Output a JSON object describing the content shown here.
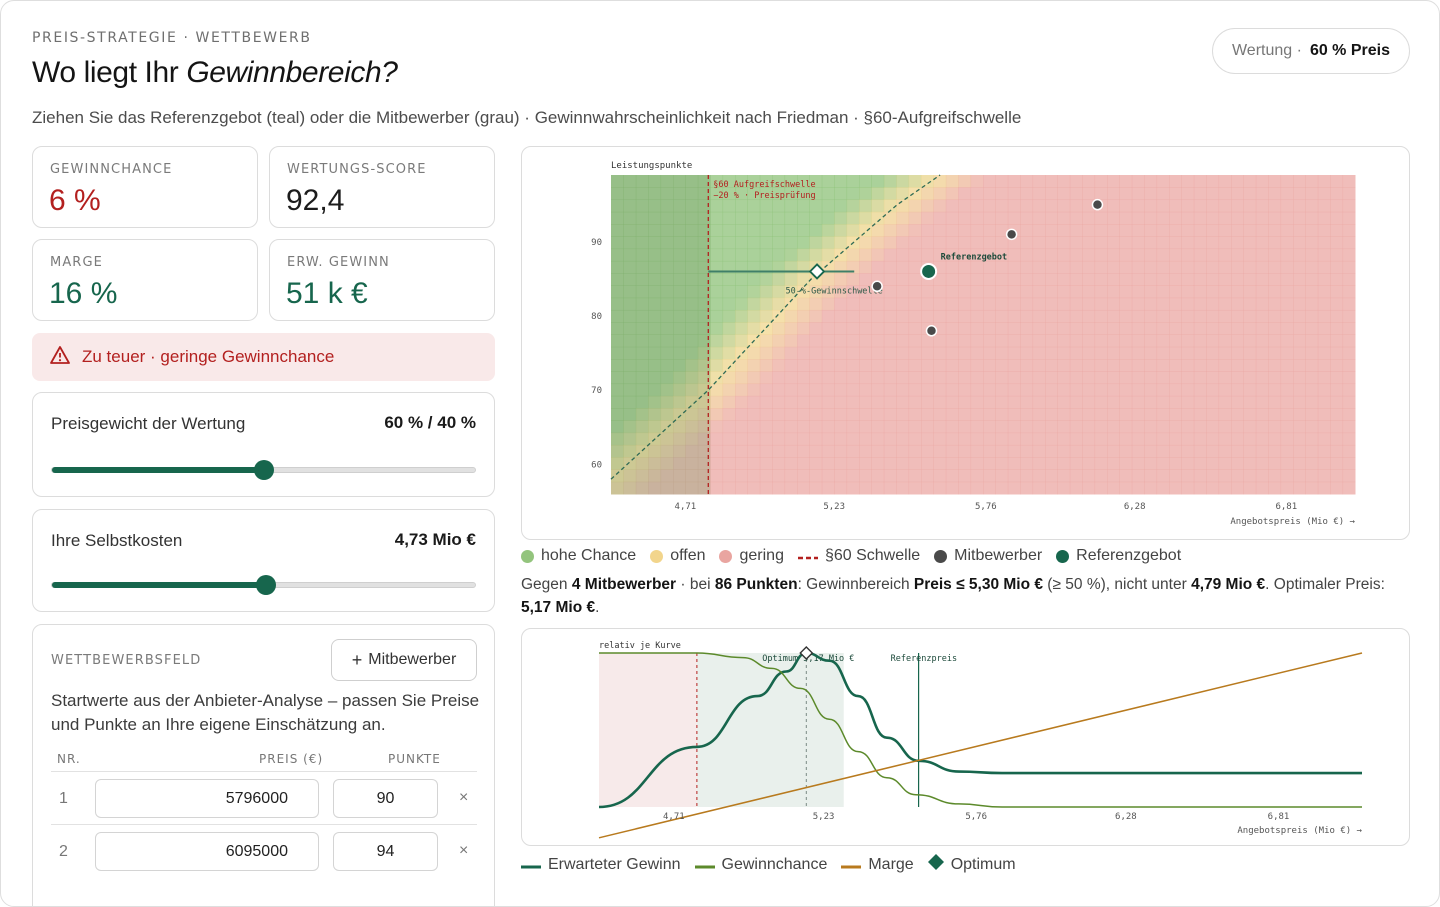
{
  "header": {
    "eyebrow": "PREIS-STRATEGIE · WETTBEWERB",
    "title_plain": "Wo liegt Ihr ",
    "title_italic": "Gewinnbereich?",
    "subtitle": "Ziehen Sie das Referenzgebot (teal) oder die Mitbewerber (grau) · Gewinnwahrscheinlichkeit nach Friedman · §60-Aufgreifschwelle",
    "pill_label": "Wertung ·",
    "pill_value": "60 % Preis"
  },
  "colors": {
    "accent": "#17664d",
    "danger": "#b3201f",
    "competitor": "#4a4a4a",
    "threshold": "#b3201f",
    "margin": "#b87a1e",
    "chance": "#5c8a2b",
    "heat_high": "#7fb069",
    "heat_open": "#f2d58c",
    "heat_low": "#e9a5a0"
  },
  "kpis": {
    "chance": {
      "label": "GEWINNCHANCE",
      "value": "6 %"
    },
    "score": {
      "label": "WERTUNGS-SCORE",
      "value": "92,4"
    },
    "margin": {
      "label": "MARGE",
      "value": "16 %"
    },
    "profit": {
      "label": "ERW. GEWINN",
      "value": "51 k €"
    }
  },
  "alert": {
    "icon": "warning-icon",
    "text": "Zu teuer · geringe Gewinnchance"
  },
  "sliders": {
    "weight": {
      "label": "Preisgewicht der Wertung",
      "value": "60 % / 40 %",
      "fraction": 0.5
    },
    "cost": {
      "label": "Ihre Selbstkosten",
      "value": "4,73 Mio €",
      "fraction": 0.505
    }
  },
  "competitors": {
    "heading": "WETTBEWERBSFELD",
    "add_label": "Mitbewerber",
    "description": "Startwerte aus der Anbieter-Analyse – passen Sie Preise und Punkte an Ihre eigene Einschätzung an.",
    "col_nr": "NR.",
    "col_price": "PREIS (€)",
    "col_points": "PUNKTE",
    "rows": [
      {
        "nr": "1",
        "price": "5796000",
        "points": "90"
      },
      {
        "nr": "2",
        "price": "6095000",
        "points": "94"
      }
    ]
  },
  "chart_data": [
    {
      "type": "heatmap",
      "ylabel": "Leistungspunkte",
      "xlabel": "Angebotspreis (Mio €) →",
      "x_ticks": [
        "4,71",
        "5,23",
        "5,76",
        "6,28",
        "6,81"
      ],
      "x_tick_values": [
        4.71,
        5.23,
        5.76,
        6.28,
        6.81
      ],
      "y_ticks": [
        "60",
        "70",
        "80",
        "90"
      ],
      "y_tick_values": [
        60,
        70,
        80,
        90
      ],
      "xlim": [
        4.45,
        7.05
      ],
      "ylim": [
        56,
        99
      ],
      "threshold": {
        "x": 4.79,
        "label_1": "§60 Aufgreifschwelle",
        "label_2": "−20 % · Preisprüfung"
      },
      "win_line_label": "50-%-Gewinnschwelle",
      "win_line": [
        [
          4.45,
          58
        ],
        [
          4.79,
          70
        ],
        [
          5.15,
          85
        ],
        [
          5.45,
          95
        ],
        [
          5.6,
          99
        ]
      ],
      "competitor_points": [
        [
          5.38,
          84
        ],
        [
          5.57,
          78
        ],
        [
          5.85,
          91
        ],
        [
          6.15,
          95
        ]
      ],
      "reference": {
        "x": 5.56,
        "y": 86,
        "label": "Referenzgebot"
      },
      "optimum": {
        "x": 5.17,
        "y": 86
      },
      "range_line": {
        "x_from": 4.79,
        "x_to": 5.3,
        "y": 86
      },
      "grid": true
    },
    {
      "type": "line",
      "ylabel": "relativ je Kurve",
      "xlabel": "Angebotspreis (Mio €) →",
      "x_ticks": [
        "4,71",
        "5,23",
        "5,76",
        "6,28",
        "6,81"
      ],
      "x_tick_values": [
        4.71,
        5.23,
        5.76,
        6.28,
        6.81
      ],
      "xlim": [
        4.45,
        7.1
      ],
      "ylim": [
        0,
        1
      ],
      "optimum_label": "Optimum 5,17 Mio €",
      "reference_label": "Referenzpreis",
      "threshold_x": 4.79,
      "reference_x": 5.56,
      "optimum_x": 5.17,
      "band": [
        4.79,
        5.3
      ],
      "series": [
        {
          "name": "Erwarteter Gewinn",
          "x": [
            4.45,
            4.79,
            5.0,
            5.1,
            5.17,
            5.25,
            5.35,
            5.45,
            5.56,
            5.7,
            5.85,
            6.0,
            7.1
          ],
          "y": [
            0.0,
            0.39,
            0.72,
            0.88,
            1.0,
            0.95,
            0.72,
            0.45,
            0.3,
            0.23,
            0.22,
            0.22,
            0.22
          ]
        },
        {
          "name": "Gewinnchance",
          "x": [
            4.45,
            4.79,
            4.95,
            5.05,
            5.15,
            5.25,
            5.35,
            5.45,
            5.55,
            5.7,
            5.85,
            7.1
          ],
          "y": [
            1.0,
            1.0,
            0.97,
            0.9,
            0.77,
            0.57,
            0.36,
            0.19,
            0.08,
            0.02,
            0.0,
            0.0
          ]
        },
        {
          "name": "Marge",
          "x": [
            4.45,
            7.1
          ],
          "y": [
            -0.2,
            1.0
          ]
        }
      ]
    }
  ],
  "legend1": [
    {
      "label": "hohe Chance",
      "kind": "dot",
      "color": "#93c47d"
    },
    {
      "label": "offen",
      "kind": "dot",
      "color": "#f2d58c"
    },
    {
      "label": "gering",
      "kind": "dot",
      "color": "#e9a5a0"
    },
    {
      "label": "§60 Schwelle",
      "kind": "dash",
      "color": "#b3201f"
    },
    {
      "label": "Mitbewerber",
      "kind": "dot",
      "color": "#4a4a4a"
    },
    {
      "label": "Referenzgebot",
      "kind": "dot",
      "color": "#17664d"
    }
  ],
  "summary": {
    "p1": "Gegen ",
    "b1": "4 Mitbewerber",
    "p2": " · bei ",
    "b2": "86 Punkten",
    "p3": ": Gewinnbereich ",
    "b3": "Preis ≤ 5,30 Mio €",
    "p4": " (≥ 50 %), nicht unter ",
    "b4": "4,79 Mio €",
    "p5": ". Optimaler Preis: ",
    "b5": "5,17 Mio €",
    "p6": "."
  },
  "legend2": [
    {
      "label": "Erwarteter Gewinn",
      "kind": "line",
      "color": "#17664d"
    },
    {
      "label": "Gewinnchance",
      "kind": "line",
      "color": "#5c8a2b"
    },
    {
      "label": "Marge",
      "kind": "line",
      "color": "#b87a1e"
    },
    {
      "label": "Optimum",
      "kind": "diamond",
      "color": "#17664d"
    }
  ]
}
